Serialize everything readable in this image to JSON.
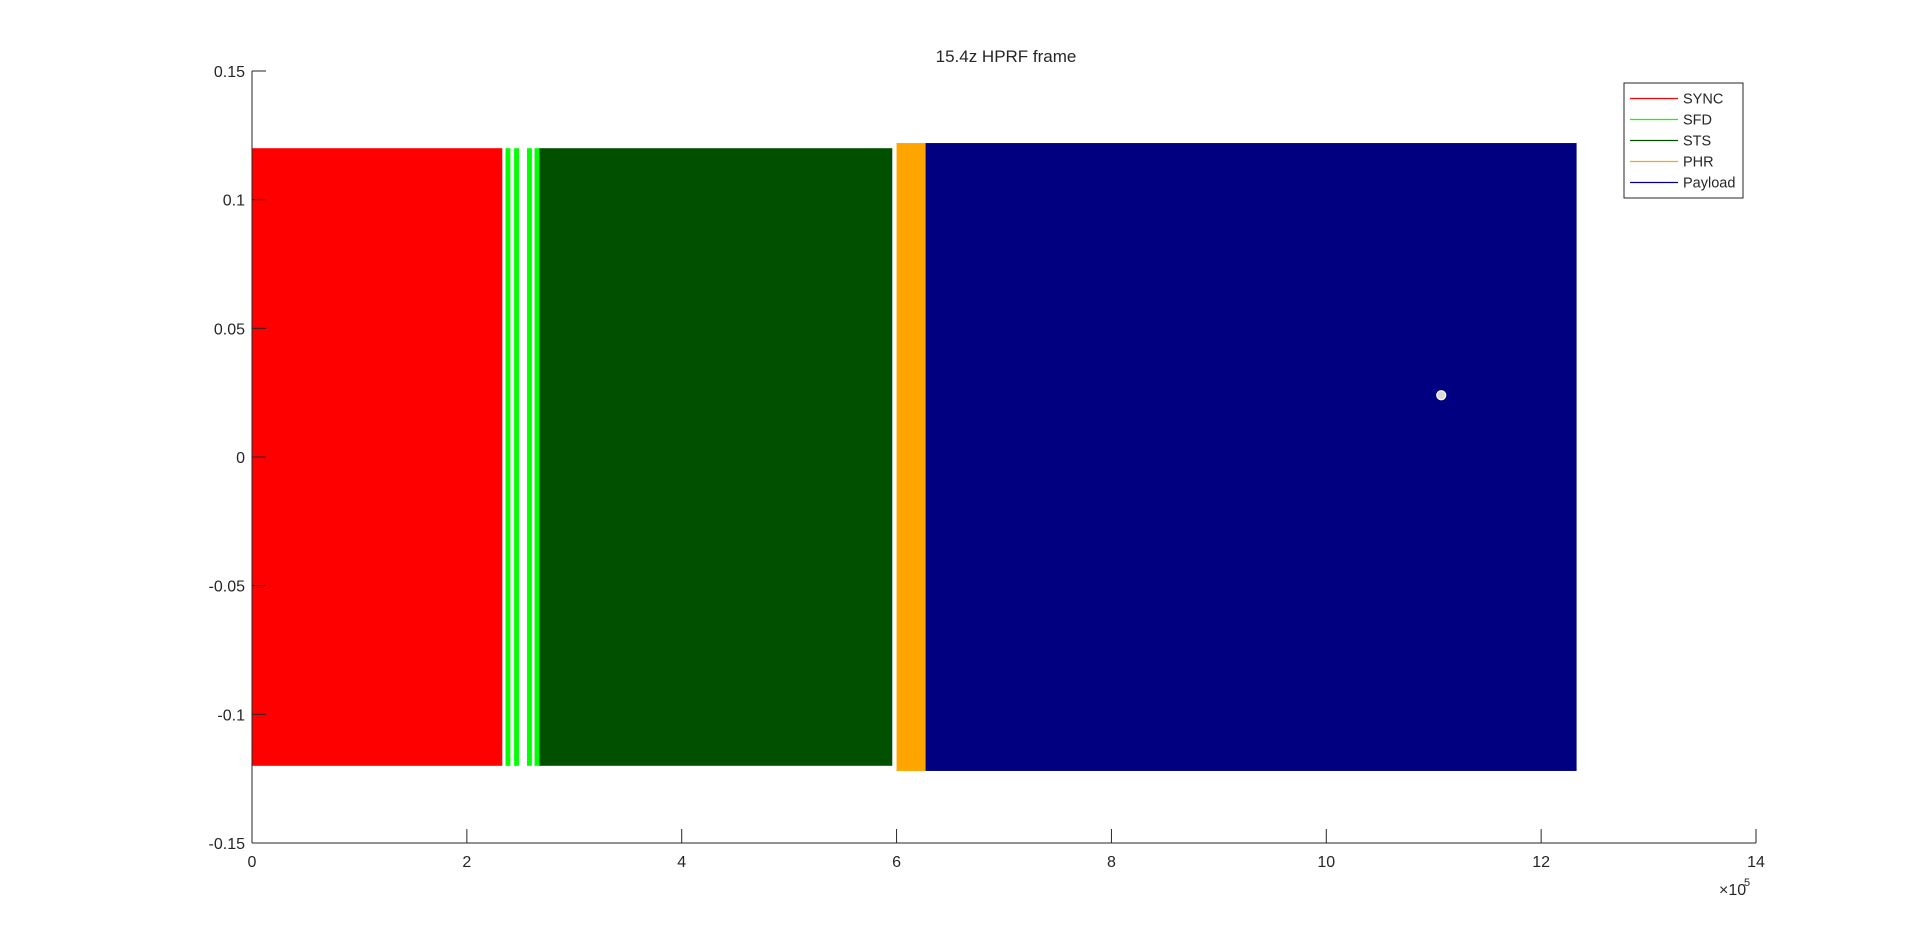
{
  "chart_data": {
    "type": "line",
    "title": "15.4z HPRF frame",
    "xlabel": "",
    "ylabel": "",
    "xlim": [
      0,
      1400000
    ],
    "ylim": [
      -0.15,
      0.15
    ],
    "x_exponent_label": "×10",
    "x_exponent_power": "5",
    "x_ticks": [
      0,
      200000,
      400000,
      600000,
      800000,
      1000000,
      1200000,
      1400000
    ],
    "x_tick_labels": [
      "0",
      "2",
      "4",
      "6",
      "8",
      "10",
      "12",
      "14"
    ],
    "y_ticks": [
      -0.15,
      -0.1,
      -0.05,
      0,
      0.05,
      0.1,
      0.15
    ],
    "y_tick_labels": [
      "-0.15",
      "-0.1",
      "-0.05",
      "0",
      "0.05",
      "0.1",
      "0.15"
    ],
    "grid": false,
    "legend_position": "top-right",
    "series": [
      {
        "name": "SYNC",
        "color": "#ff0000",
        "x_range": [
          0,
          233000
        ],
        "amplitude": 0.12
      },
      {
        "name": "SFD",
        "color": "#00ff00",
        "segments": [
          [
            236000,
            240500
          ],
          [
            244000,
            248500
          ],
          [
            256000,
            260500
          ],
          [
            263000,
            267500
          ]
        ],
        "amplitude": 0.12
      },
      {
        "name": "STS",
        "color": "#005000",
        "x_range": [
          267500,
          596000
        ],
        "amplitude": 0.12
      },
      {
        "name": "PHR",
        "color": "#ffa500",
        "x_range": [
          600000,
          627000
        ],
        "amplitude": 0.122
      },
      {
        "name": "Payload",
        "color": "#000080",
        "x_range": [
          627000,
          1233000
        ],
        "amplitude": 0.122
      }
    ],
    "marker": {
      "x": 1107000,
      "y": 0.024
    }
  }
}
